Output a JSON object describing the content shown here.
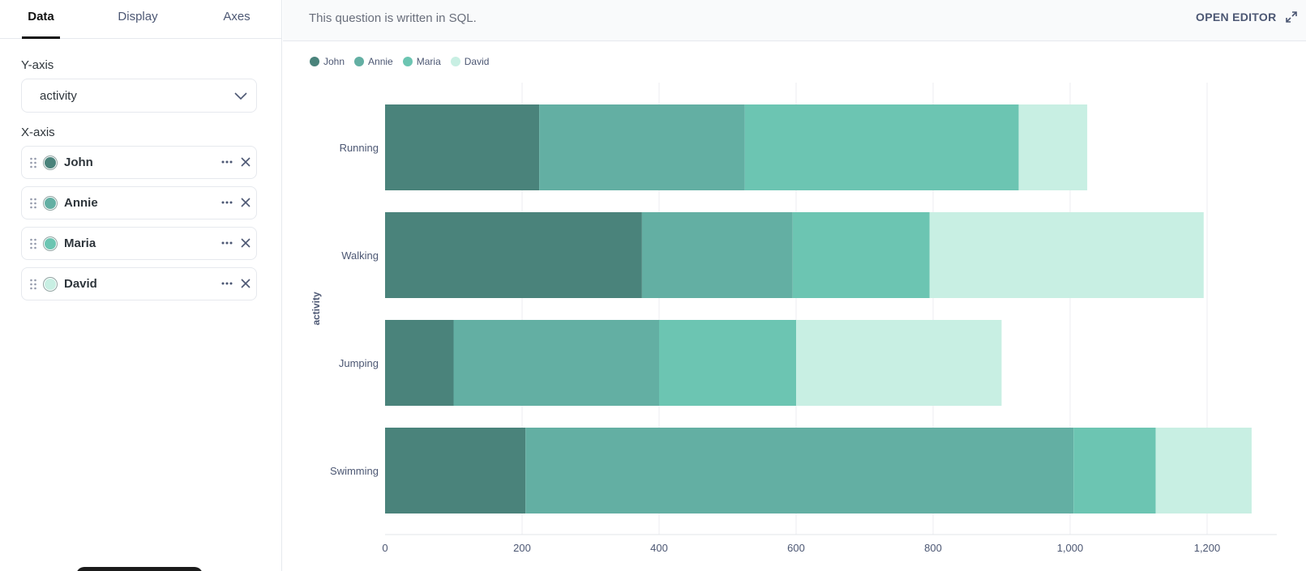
{
  "sidebar": {
    "tabs": [
      {
        "label": "Data",
        "active": true
      },
      {
        "label": "Display",
        "active": false
      },
      {
        "label": "Axes",
        "active": false
      }
    ],
    "y_axis_label": "Y-axis",
    "y_axis_value": "activity",
    "x_axis_label": "X-axis",
    "series": [
      {
        "name": "John",
        "color": "#4a837b"
      },
      {
        "name": "Annie",
        "color": "#63afa3"
      },
      {
        "name": "Maria",
        "color": "#6cc5b2"
      },
      {
        "name": "David",
        "color": "#c8efe3"
      }
    ]
  },
  "header": {
    "note": "This question is written in SQL.",
    "open_editor_label": "OPEN EDITOR"
  },
  "chart_data": {
    "type": "bar",
    "orientation": "horizontal",
    "stacked": true,
    "categories": [
      "Running",
      "Walking",
      "Jumping",
      "Swimming"
    ],
    "series": [
      {
        "name": "John",
        "color": "#4a837b",
        "values": [
          225,
          375,
          100,
          205
        ]
      },
      {
        "name": "Annie",
        "color": "#63afa3",
        "values": [
          300,
          220,
          300,
          800
        ]
      },
      {
        "name": "Maria",
        "color": "#6cc5b2",
        "values": [
          400,
          200,
          200,
          120
        ]
      },
      {
        "name": "David",
        "color": "#c8efe3",
        "values": [
          100,
          400,
          300,
          140
        ]
      }
    ],
    "ylabel": "activity",
    "xlabel": "",
    "xlim": [
      0,
      1300
    ],
    "xticks": [
      0,
      200,
      400,
      600,
      800,
      1000,
      1200
    ],
    "xtick_labels": [
      "0",
      "200",
      "400",
      "600",
      "800",
      "1,000",
      "1,200"
    ],
    "grid": true,
    "legend_position": "top-left"
  }
}
